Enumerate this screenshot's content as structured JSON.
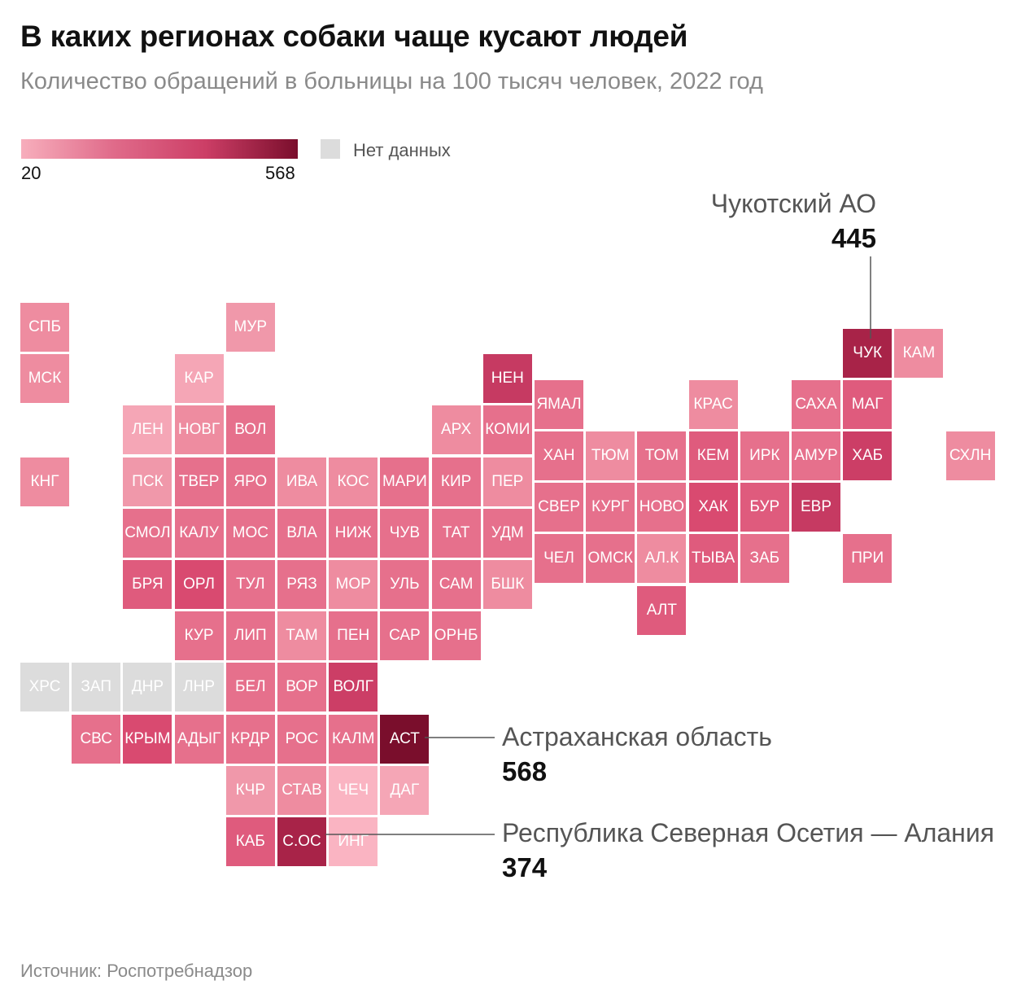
{
  "header": {
    "title": "В каких регионах собаки чаще кусают людей",
    "subtitle": "Количество обращений в больницы на 100 тысяч человек, 2022 год"
  },
  "legend": {
    "min": "20",
    "max": "568",
    "no_data_label": "Нет данных",
    "no_data_color": "#dcdcdc"
  },
  "footer": {
    "source": "Источник: Роспотребнадзор"
  },
  "callouts": [
    {
      "name": "Чукотский АО",
      "value": "445"
    },
    {
      "name": "Астраханская область",
      "value": "568"
    },
    {
      "name": "Республика Северная Осетия — Алания",
      "value": "374"
    }
  ],
  "map": {
    "tiles": [
      {
        "abbr": "СПБ",
        "col": 0,
        "row": 0,
        "color": "#ee8ca0"
      },
      {
        "abbr": "МСК",
        "col": 0,
        "row": 1,
        "color": "#ee8ca0"
      },
      {
        "abbr": "КНГ",
        "col": 0,
        "row": 3,
        "color": "#ee8ca0"
      },
      {
        "abbr": "МУР",
        "col": 4,
        "row": 0,
        "color": "#f098aa"
      },
      {
        "abbr": "КАР",
        "col": 3,
        "row": 1,
        "color": "#f5a6b6"
      },
      {
        "abbr": "ЛЕН",
        "col": 2,
        "row": 2,
        "color": "#f5a6b6"
      },
      {
        "abbr": "НОВГ",
        "col": 3,
        "row": 2,
        "color": "#ee8ca0"
      },
      {
        "abbr": "ВОЛ",
        "col": 4,
        "row": 2,
        "color": "#e6708c"
      },
      {
        "abbr": "ПСК",
        "col": 2,
        "row": 3,
        "color": "#f098aa"
      },
      {
        "abbr": "ТВЕР",
        "col": 3,
        "row": 3,
        "color": "#e6708c"
      },
      {
        "abbr": "ЯРО",
        "col": 4,
        "row": 3,
        "color": "#e6708c"
      },
      {
        "abbr": "ИВА",
        "col": 5,
        "row": 3,
        "color": "#ee8ca0"
      },
      {
        "abbr": "КОС",
        "col": 6,
        "row": 3,
        "color": "#ee8ca0"
      },
      {
        "abbr": "МАРИ",
        "col": 7,
        "row": 3,
        "color": "#e6708c"
      },
      {
        "abbr": "КИР",
        "col": 8,
        "row": 3,
        "color": "#e6708c"
      },
      {
        "abbr": "СМОЛ",
        "col": 2,
        "row": 4,
        "color": "#e6708c"
      },
      {
        "abbr": "КАЛУ",
        "col": 3,
        "row": 4,
        "color": "#e6708c"
      },
      {
        "abbr": "МОС",
        "col": 4,
        "row": 4,
        "color": "#e6708c"
      },
      {
        "abbr": "ВЛА",
        "col": 5,
        "row": 4,
        "color": "#e6708c"
      },
      {
        "abbr": "НИЖ",
        "col": 6,
        "row": 4,
        "color": "#e6708c"
      },
      {
        "abbr": "ЧУВ",
        "col": 7,
        "row": 4,
        "color": "#e6708c"
      },
      {
        "abbr": "ТАТ",
        "col": 8,
        "row": 4,
        "color": "#e6708c"
      },
      {
        "abbr": "БРЯ",
        "col": 2,
        "row": 5,
        "color": "#df5b7d"
      },
      {
        "abbr": "ОРЛ",
        "col": 3,
        "row": 5,
        "color": "#d94a70"
      },
      {
        "abbr": "ТУЛ",
        "col": 4,
        "row": 5,
        "color": "#e6708c"
      },
      {
        "abbr": "РЯЗ",
        "col": 5,
        "row": 5,
        "color": "#e6708c"
      },
      {
        "abbr": "МОР",
        "col": 6,
        "row": 5,
        "color": "#ee8ca0"
      },
      {
        "abbr": "УЛЬ",
        "col": 7,
        "row": 5,
        "color": "#e6708c"
      },
      {
        "abbr": "САМ",
        "col": 8,
        "row": 5,
        "color": "#e6708c"
      },
      {
        "abbr": "КУР",
        "col": 3,
        "row": 6,
        "color": "#e6708c"
      },
      {
        "abbr": "ЛИП",
        "col": 4,
        "row": 6,
        "color": "#e6708c"
      },
      {
        "abbr": "ТАМ",
        "col": 5,
        "row": 6,
        "color": "#ee8ca0"
      },
      {
        "abbr": "ПЕН",
        "col": 6,
        "row": 6,
        "color": "#e6708c"
      },
      {
        "abbr": "САР",
        "col": 7,
        "row": 6,
        "color": "#e6708c"
      },
      {
        "abbr": "ОРНБ",
        "col": 8,
        "row": 6,
        "color": "#e6708c"
      },
      {
        "abbr": "ХРС",
        "col": 0,
        "row": 7,
        "color": "#dcdcdc"
      },
      {
        "abbr": "ЗАП",
        "col": 1,
        "row": 7,
        "color": "#dcdcdc"
      },
      {
        "abbr": "ДНР",
        "col": 2,
        "row": 7,
        "color": "#dcdcdc"
      },
      {
        "abbr": "ЛНР",
        "col": 3,
        "row": 7,
        "color": "#dcdcdc"
      },
      {
        "abbr": "БЕЛ",
        "col": 4,
        "row": 7,
        "color": "#e6708c"
      },
      {
        "abbr": "ВОР",
        "col": 5,
        "row": 7,
        "color": "#e6708c"
      },
      {
        "abbr": "ВОЛГ",
        "col": 6,
        "row": 7,
        "color": "#cc3e66"
      },
      {
        "abbr": "СВС",
        "col": 1,
        "row": 8,
        "color": "#e6708c"
      },
      {
        "abbr": "КРЫМ",
        "col": 2,
        "row": 8,
        "color": "#d94a70"
      },
      {
        "abbr": "АДЫГ",
        "col": 3,
        "row": 8,
        "color": "#e6708c"
      },
      {
        "abbr": "КРДР",
        "col": 4,
        "row": 8,
        "color": "#e6708c"
      },
      {
        "abbr": "РОС",
        "col": 5,
        "row": 8,
        "color": "#e6708c"
      },
      {
        "abbr": "КАЛМ",
        "col": 6,
        "row": 8,
        "color": "#e6708c"
      },
      {
        "abbr": "АСТ",
        "col": 7,
        "row": 8,
        "color": "#7a0e2c"
      },
      {
        "abbr": "КЧР",
        "col": 4,
        "row": 9,
        "color": "#f098aa"
      },
      {
        "abbr": "СТАВ",
        "col": 5,
        "row": 9,
        "color": "#ee8ca0"
      },
      {
        "abbr": "ЧЕЧ",
        "col": 6,
        "row": 9,
        "color": "#fab4c2"
      },
      {
        "abbr": "ДАГ",
        "col": 7,
        "row": 9,
        "color": "#f5a6b6"
      },
      {
        "abbr": "КАБ",
        "col": 4,
        "row": 10,
        "color": "#df5b7d"
      },
      {
        "abbr": "С.ОС",
        "col": 5,
        "row": 10,
        "color": "#a82348"
      },
      {
        "abbr": "ИНГ",
        "col": 6,
        "row": 10,
        "color": "#fab4c2"
      },
      {
        "abbr": "НЕН",
        "col": 9,
        "row": 1,
        "color": "#c63a62"
      },
      {
        "abbr": "АРХ",
        "col": 8,
        "row": 2,
        "color": "#ee8ca0"
      },
      {
        "abbr": "КОМИ",
        "col": 9,
        "row": 2,
        "color": "#e6708c"
      },
      {
        "abbr": "ПЕР",
        "col": 9,
        "row": 3,
        "color": "#ee8ca0"
      },
      {
        "abbr": "УДМ",
        "col": 9,
        "row": 4,
        "color": "#e6708c"
      },
      {
        "abbr": "БШК",
        "col": 9,
        "row": 5,
        "color": "#ee8ca0"
      },
      {
        "abbr": "ЯМАЛ",
        "col": 10,
        "row": 1.5,
        "color": "#e6708c"
      },
      {
        "abbr": "ХАН",
        "col": 10,
        "row": 2.5,
        "color": "#e6708c"
      },
      {
        "abbr": "СВЕР",
        "col": 10,
        "row": 3.5,
        "color": "#e6708c"
      },
      {
        "abbr": "ЧЕЛ",
        "col": 10,
        "row": 4.5,
        "color": "#e6708c"
      },
      {
        "abbr": "ТЮМ",
        "col": 11,
        "row": 2.5,
        "color": "#ee8ca0"
      },
      {
        "abbr": "КУРГ",
        "col": 11,
        "row": 3.5,
        "color": "#e6708c"
      },
      {
        "abbr": "ОМСК",
        "col": 11,
        "row": 4.5,
        "color": "#e6708c"
      },
      {
        "abbr": "ТОМ",
        "col": 12,
        "row": 2.5,
        "color": "#e6708c"
      },
      {
        "abbr": "НОВО",
        "col": 12,
        "row": 3.5,
        "color": "#e6708c"
      },
      {
        "abbr": "АЛ.К",
        "col": 12,
        "row": 4.5,
        "color": "#ee8ca0"
      },
      {
        "abbr": "АЛТ",
        "col": 12,
        "row": 5.5,
        "color": "#df5b7d"
      },
      {
        "abbr": "КРАС",
        "col": 13,
        "row": 1.5,
        "color": "#ee8ca0"
      },
      {
        "abbr": "КЕМ",
        "col": 13,
        "row": 2.5,
        "color": "#df5b7d"
      },
      {
        "abbr": "ХАК",
        "col": 13,
        "row": 3.5,
        "color": "#d94a70"
      },
      {
        "abbr": "ТЫВА",
        "col": 13,
        "row": 4.5,
        "color": "#df5b7d"
      },
      {
        "abbr": "ИРК",
        "col": 14,
        "row": 2.5,
        "color": "#e6708c"
      },
      {
        "abbr": "БУР",
        "col": 14,
        "row": 3.5,
        "color": "#df5b7d"
      },
      {
        "abbr": "ЗАБ",
        "col": 14,
        "row": 4.5,
        "color": "#e6708c"
      },
      {
        "abbr": "САХА",
        "col": 15,
        "row": 1.5,
        "color": "#e6708c"
      },
      {
        "abbr": "АМУР",
        "col": 15,
        "row": 2.5,
        "color": "#e6708c"
      },
      {
        "abbr": "ЕВР",
        "col": 15,
        "row": 3.5,
        "color": "#c63a62"
      },
      {
        "abbr": "ЧУК",
        "col": 16,
        "row": 0.5,
        "color": "#a82348"
      },
      {
        "abbr": "МАГ",
        "col": 16,
        "row": 1.5,
        "color": "#df5b7d"
      },
      {
        "abbr": "ХАБ",
        "col": 16,
        "row": 2.5,
        "color": "#cc3e66"
      },
      {
        "abbr": "ПРИ",
        "col": 16,
        "row": 4.5,
        "color": "#e6708c"
      },
      {
        "abbr": "КАМ",
        "col": 17,
        "row": 0.5,
        "color": "#ee8ca0"
      },
      {
        "abbr": "СХЛН",
        "col": 18,
        "row": 2.5,
        "color": "#ee8ca0"
      }
    ]
  }
}
